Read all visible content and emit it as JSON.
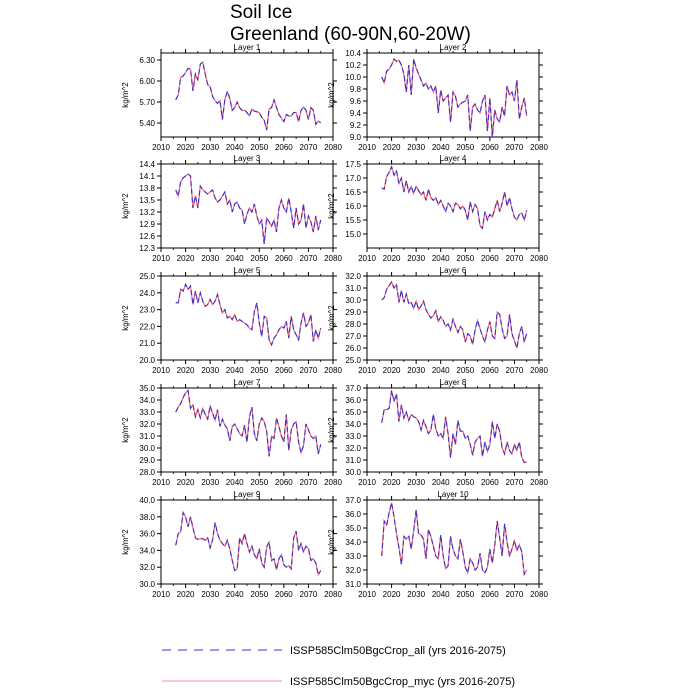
{
  "title": [
    "Soil Ice",
    "Greenland (60-90N,60-20W)"
  ],
  "legend": [
    {
      "label": "ISSP585Clm50BgcCrop_all (yrs 2016-2075)",
      "color": "#3333cc",
      "dash": true
    },
    {
      "label": "ISSP585Clm50BgcCrop_myc (yrs 2016-2075)",
      "color": "#ff6677",
      "dash": false
    }
  ],
  "chart_data": [
    {
      "type": "line",
      "title": "Layer 1",
      "ylabel": "kg/m^2",
      "xlim": [
        2010,
        2080
      ],
      "xticks": [
        2010,
        2020,
        2030,
        2040,
        2050,
        2060,
        2070,
        2080
      ],
      "ylim": [
        5.2,
        6.4
      ],
      "yticks": [
        "5.40",
        "5.70",
        "6.00",
        "6.30"
      ],
      "y": [
        5.73,
        5.8,
        6.05,
        6.07,
        6.12,
        6.18,
        6.17,
        5.86,
        6.1,
        6.02,
        6.24,
        6.27,
        6.1,
        5.95,
        5.92,
        5.78,
        5.72,
        5.68,
        5.72,
        5.45,
        5.74,
        5.85,
        5.75,
        5.58,
        5.62,
        5.7,
        5.62,
        5.58,
        5.58,
        5.55,
        5.5,
        5.6,
        5.57,
        5.56,
        5.55,
        5.48,
        5.44,
        5.3,
        5.6,
        5.62,
        5.73,
        5.62,
        5.52,
        5.47,
        5.42,
        5.52,
        5.5,
        5.5,
        5.55,
        5.55,
        5.42,
        5.58,
        5.63,
        5.58,
        5.45,
        5.62,
        5.58,
        5.38,
        5.43,
        5.4
      ]
    },
    {
      "type": "line",
      "title": "Layer 2",
      "ylabel": "kg/m^2",
      "xlim": [
        2010,
        2080
      ],
      "xticks": [
        2010,
        2020,
        2030,
        2040,
        2050,
        2060,
        2070,
        2080
      ],
      "ylim": [
        9.0,
        10.4
      ],
      "yticks": [
        "9.0",
        "9.2",
        "9.4",
        "9.6",
        "9.8",
        "10.0",
        "10.2",
        "10.4"
      ],
      "y": [
        10.0,
        9.9,
        10.1,
        10.13,
        10.2,
        10.3,
        10.26,
        10.28,
        10.2,
        10.05,
        9.75,
        10.2,
        9.7,
        10.3,
        10.15,
        10.05,
        9.95,
        9.85,
        9.9,
        9.8,
        9.85,
        9.75,
        9.85,
        9.4,
        9.78,
        9.6,
        9.65,
        9.7,
        9.25,
        9.75,
        9.68,
        9.5,
        9.55,
        9.58,
        9.6,
        9.7,
        9.1,
        9.5,
        9.55,
        9.45,
        9.4,
        9.6,
        9.7,
        9.1,
        9.65,
        9.0,
        9.45,
        9.3,
        9.25,
        9.5,
        9.35,
        9.85,
        9.7,
        9.75,
        9.6,
        9.95,
        9.3,
        9.5,
        9.65,
        9.35
      ]
    },
    {
      "type": "line",
      "title": "Layer 3",
      "ylabel": "kg/m^2",
      "xlim": [
        2010,
        2080
      ],
      "xticks": [
        2010,
        2020,
        2030,
        2040,
        2050,
        2060,
        2070,
        2080
      ],
      "ylim": [
        12.3,
        14.4
      ],
      "yticks": [
        "12.3",
        "12.6",
        "12.9",
        "13.2",
        "13.5",
        "13.8",
        "14.1",
        "14.4"
      ],
      "y": [
        13.75,
        13.6,
        13.95,
        14.05,
        14.1,
        14.15,
        14.1,
        13.3,
        13.6,
        13.3,
        13.85,
        13.75,
        13.7,
        13.65,
        13.7,
        13.75,
        13.55,
        13.45,
        13.5,
        13.6,
        13.7,
        13.4,
        13.5,
        13.2,
        13.4,
        13.45,
        13.3,
        13.25,
        12.9,
        13.15,
        13.3,
        13.2,
        13.4,
        13.1,
        12.9,
        13.0,
        12.4,
        13.05,
        12.95,
        12.85,
        13.0,
        12.7,
        13.3,
        13.5,
        13.3,
        13.2,
        13.55,
        13.2,
        12.8,
        13.3,
        12.9,
        13.0,
        13.4,
        12.8,
        13.1,
        12.95,
        12.7,
        13.1,
        12.75,
        13.0
      ]
    },
    {
      "type": "line",
      "title": "Layer 4",
      "ylabel": "kg/m^2",
      "xlim": [
        2010,
        2080
      ],
      "xticks": [
        2010,
        2020,
        2030,
        2040,
        2050,
        2060,
        2070,
        2080
      ],
      "ylim": [
        14.5,
        17.5
      ],
      "yticks": [
        "15.0",
        "15.5",
        "16.0",
        "16.5",
        "17.0",
        "17.5"
      ],
      "y": [
        16.65,
        16.6,
        17.05,
        17.2,
        17.4,
        17.1,
        17.25,
        16.8,
        17.0,
        16.5,
        16.9,
        16.5,
        16.7,
        16.45,
        16.7,
        16.55,
        16.4,
        16.5,
        16.2,
        16.6,
        16.3,
        16.2,
        16.3,
        16.05,
        16.2,
        16.0,
        15.8,
        16.1,
        16.0,
        15.8,
        16.1,
        16.05,
        15.9,
        16.0,
        15.85,
        15.5,
        16.15,
        15.8,
        16.05,
        15.9,
        15.3,
        15.2,
        15.8,
        15.5,
        15.7,
        15.6,
        15.9,
        16.2,
        15.8,
        16.1,
        16.5,
        16.0,
        16.3,
        15.9,
        15.6,
        15.5,
        15.7,
        15.75,
        15.5,
        15.85
      ]
    },
    {
      "type": "line",
      "title": "Layer 5",
      "ylabel": "kg/m^2",
      "xlim": [
        2010,
        2080
      ],
      "xticks": [
        2010,
        2020,
        2030,
        2040,
        2050,
        2060,
        2070,
        2080
      ],
      "ylim": [
        20.0,
        25.0
      ],
      "yticks": [
        "20.0",
        "21.0",
        "22.0",
        "23.0",
        "24.0",
        "25.0"
      ],
      "y": [
        23.4,
        23.4,
        24.2,
        24.1,
        24.5,
        24.2,
        24.4,
        23.3,
        24.1,
        23.4,
        24.0,
        23.5,
        23.2,
        23.3,
        23.6,
        23.3,
        23.5,
        23.9,
        23.3,
        22.8,
        23.0,
        22.5,
        22.6,
        22.4,
        22.7,
        22.3,
        22.4,
        22.3,
        22.2,
        22.1,
        21.9,
        21.8,
        22.9,
        23.4,
        22.2,
        21.4,
        22.6,
        22.5,
        21.2,
        20.9,
        21.3,
        21.5,
        21.8,
        22.0,
        21.9,
        22.3,
        21.3,
        22.6,
        21.8,
        21.5,
        21.2,
        22.2,
        22.8,
        22.0,
        22.2,
        22.7,
        21.1,
        21.8,
        21.3,
        21.9
      ]
    },
    {
      "type": "line",
      "title": "Layer 6",
      "ylabel": "kg/m^2",
      "xlim": [
        2010,
        2080
      ],
      "xticks": [
        2010,
        2020,
        2030,
        2040,
        2050,
        2060,
        2070,
        2080
      ],
      "ylim": [
        25.0,
        32.0
      ],
      "yticks": [
        "25.0",
        "26.0",
        "27.0",
        "28.0",
        "29.0",
        "30.0",
        "31.0",
        "32.0"
      ],
      "y": [
        30.0,
        30.2,
        30.9,
        31.2,
        31.5,
        31.0,
        31.3,
        29.8,
        30.8,
        29.8,
        30.5,
        29.7,
        29.8,
        29.3,
        29.9,
        29.2,
        29.5,
        29.9,
        29.2,
        28.8,
        28.5,
        28.7,
        29.1,
        28.2,
        28.6,
        28.3,
        27.8,
        28.0,
        27.5,
        28.4,
        27.8,
        27.3,
        27.8,
        27.5,
        26.5,
        27.2,
        27.0,
        26.3,
        27.5,
        28.3,
        27.6,
        27.0,
        26.5,
        27.5,
        28.2,
        27.0,
        26.8,
        29.0,
        28.8,
        27.6,
        26.8,
        27.0,
        28.8,
        27.2,
        26.6,
        26.0,
        27.2,
        27.8,
        26.5,
        27.2
      ]
    },
    {
      "type": "line",
      "title": "Layer 7",
      "ylabel": "kg/m^2",
      "xlim": [
        2010,
        2080
      ],
      "xticks": [
        2010,
        2020,
        2030,
        2040,
        2050,
        2060,
        2070,
        2080
      ],
      "ylim": [
        28.0,
        35.0
      ],
      "yticks": [
        "28.0",
        "29.0",
        "30.0",
        "31.0",
        "32.0",
        "33.0",
        "34.0",
        "35.0"
      ],
      "y": [
        33.0,
        33.4,
        33.7,
        34.2,
        34.6,
        34.8,
        33.3,
        33.6,
        32.6,
        33.2,
        32.5,
        33.3,
        32.8,
        32.4,
        33.5,
        32.9,
        32.3,
        33.2,
        31.8,
        32.4,
        31.9,
        31.6,
        30.6,
        31.8,
        32.0,
        31.6,
        31.2,
        31.0,
        31.9,
        30.5,
        32.6,
        33.4,
        31.2,
        30.6,
        32.0,
        32.5,
        32.2,
        31.4,
        29.3,
        31.0,
        30.8,
        32.5,
        31.8,
        31.0,
        30.5,
        32.8,
        29.8,
        31.5,
        32.0,
        32.2,
        30.5,
        29.6,
        30.2,
        32.0,
        31.5,
        31.0,
        30.8,
        31.0,
        29.5,
        30.3
      ]
    },
    {
      "type": "line",
      "title": "Layer 8",
      "ylabel": "kg/m^2",
      "xlim": [
        2010,
        2080
      ],
      "xticks": [
        2010,
        2020,
        2030,
        2040,
        2050,
        2060,
        2070,
        2080
      ],
      "ylim": [
        30.0,
        37.0
      ],
      "yticks": [
        "30.0",
        "31.0",
        "32.0",
        "33.0",
        "34.0",
        "35.0",
        "36.0",
        "37.0"
      ],
      "y": [
        34.1,
        35.2,
        35.2,
        35.3,
        36.8,
        35.9,
        36.5,
        34.2,
        35.6,
        34.5,
        35.0,
        34.3,
        34.8,
        34.6,
        34.5,
        34.2,
        33.5,
        34.3,
        33.8,
        33.2,
        33.5,
        34.8,
        33.6,
        33.0,
        33.2,
        32.8,
        34.6,
        33.2,
        31.2,
        33.2,
        32.3,
        34.3,
        33.4,
        33.4,
        32.8,
        33.0,
        32.3,
        31.4,
        32.5,
        32.8,
        33.0,
        31.3,
        32.5,
        31.7,
        32.3,
        34.2,
        32.8,
        34.0,
        33.4,
        32.0,
        31.5,
        32.5,
        31.8,
        31.5,
        32.3,
        31.8,
        32.5,
        31.2,
        30.8,
        30.8
      ]
    },
    {
      "type": "line",
      "title": "Layer 9",
      "ylabel": "kg/m^2",
      "xlim": [
        2010,
        2080
      ],
      "xticks": [
        2010,
        2020,
        2030,
        2040,
        2050,
        2060,
        2070,
        2080
      ],
      "ylim": [
        30.0,
        40.0
      ],
      "yticks": [
        "30.0",
        "32.0",
        "34.0",
        "36.0",
        "38.0",
        "40.0"
      ],
      "y": [
        34.6,
        36.0,
        36.2,
        38.5,
        38.0,
        36.8,
        38.0,
        36.7,
        35.5,
        35.3,
        35.4,
        35.4,
        35.2,
        35.5,
        34.3,
        35.3,
        37.3,
        36.0,
        35.2,
        34.8,
        34.5,
        35.2,
        34.2,
        32.8,
        31.6,
        31.8,
        35.5,
        34.8,
        36.0,
        34.8,
        33.8,
        34.5,
        33.5,
        33.0,
        34.2,
        32.5,
        32.0,
        34.4,
        35.0,
        32.8,
        33.0,
        31.7,
        33.0,
        33.5,
        32.3,
        32.0,
        32.2,
        31.8,
        35.5,
        36.3,
        34.0,
        34.8,
        33.8,
        34.5,
        34.2,
        32.8,
        33.0,
        32.5,
        31.1,
        31.6
      ]
    },
    {
      "type": "line",
      "title": "Layer 10",
      "ylabel": "kg/m^2",
      "xlim": [
        2010,
        2080
      ],
      "xticks": [
        2010,
        2020,
        2030,
        2040,
        2050,
        2060,
        2070,
        2080
      ],
      "ylim": [
        31.0,
        37.0
      ],
      "yticks": [
        "31.0",
        "32.0",
        "33.0",
        "34.0",
        "35.0",
        "36.0",
        "37.0"
      ],
      "y": [
        33.0,
        35.5,
        35.2,
        36.1,
        36.8,
        35.8,
        34.6,
        33.6,
        32.4,
        34.4,
        34.2,
        34.4,
        33.5,
        34.8,
        36.3,
        34.6,
        34.5,
        34.2,
        32.8,
        34.9,
        34.4,
        33.7,
        33.0,
        32.8,
        34.5,
        33.0,
        32.1,
        32.3,
        34.4,
        33.5,
        33.0,
        32.8,
        34.2,
        33.3,
        32.2,
        31.8,
        32.8,
        32.5,
        32.0,
        32.2,
        33.2,
        32.0,
        31.8,
        32.2,
        33.5,
        32.5,
        33.8,
        35.5,
        34.3,
        33.0,
        35.3,
        34.0,
        33.0,
        33.5,
        34.1,
        33.4,
        33.8,
        33.3,
        31.7,
        32.0
      ]
    }
  ]
}
